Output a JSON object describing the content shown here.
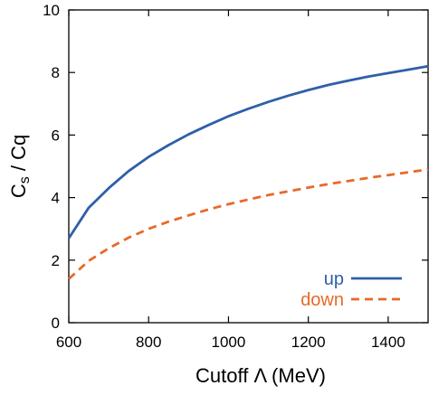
{
  "chart_data": {
    "type": "line",
    "xlabel": "Cutoff Λ    (MeV)",
    "ylabel_main": "C",
    "ylabel_sub1": "s",
    "ylabel_mid": " / Cq",
    "xlim": [
      600,
      1500
    ],
    "ylim": [
      0,
      10
    ],
    "x_ticks": [
      600,
      800,
      1000,
      1200,
      1400
    ],
    "y_ticks": [
      0,
      2,
      4,
      6,
      8,
      10
    ],
    "grid": false,
    "legend_position": "bottom-right",
    "series": [
      {
        "name": "up",
        "color": "#2f5fa8",
        "dash": "solid",
        "x": [
          600,
          650,
          700,
          750,
          800,
          850,
          900,
          950,
          1000,
          1050,
          1100,
          1150,
          1200,
          1250,
          1300,
          1350,
          1400,
          1450,
          1500
        ],
        "y": [
          2.7,
          3.68,
          4.3,
          4.85,
          5.3,
          5.68,
          6.02,
          6.32,
          6.6,
          6.84,
          7.06,
          7.26,
          7.44,
          7.6,
          7.74,
          7.87,
          7.98,
          8.09,
          8.2
        ]
      },
      {
        "name": "down",
        "color": "#e8692a",
        "dash": "dashed",
        "x": [
          600,
          650,
          700,
          750,
          800,
          850,
          900,
          950,
          1000,
          1050,
          1100,
          1150,
          1200,
          1250,
          1300,
          1350,
          1400,
          1450,
          1500
        ],
        "y": [
          1.4,
          1.98,
          2.38,
          2.72,
          3.0,
          3.23,
          3.43,
          3.62,
          3.79,
          3.94,
          4.08,
          4.2,
          4.32,
          4.43,
          4.53,
          4.63,
          4.72,
          4.81,
          4.9
        ]
      }
    ]
  }
}
